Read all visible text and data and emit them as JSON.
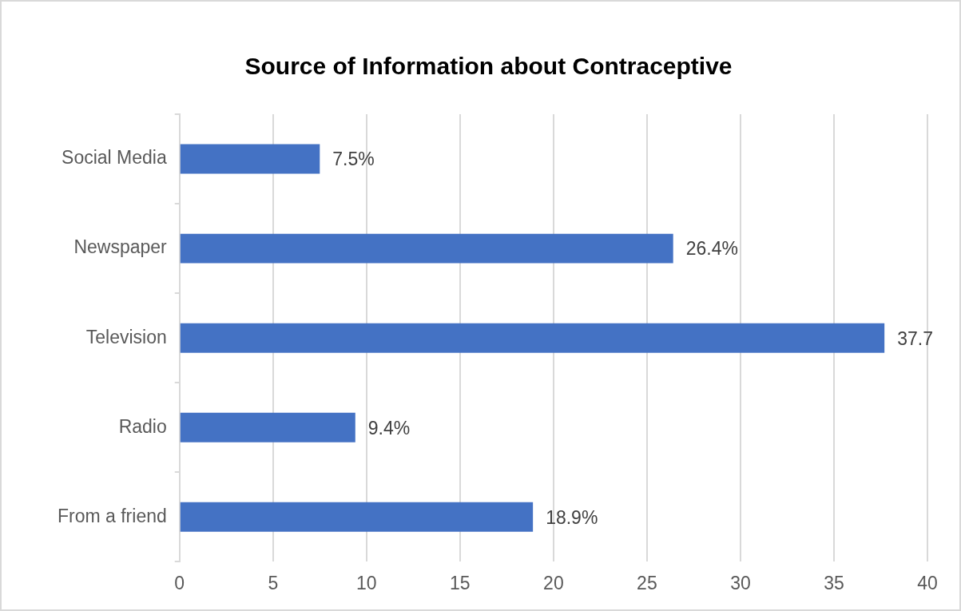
{
  "chart_data": {
    "type": "bar",
    "orientation": "horizontal",
    "title": "Source of Information about Contraceptive",
    "categories": [
      "Social Media",
      "Newspaper",
      "Television",
      "Radio",
      "From a friend"
    ],
    "values": [
      7.5,
      26.4,
      37.7,
      9.4,
      18.9
    ],
    "value_labels": [
      "7.5%",
      "26.4%",
      "37.7",
      "9.4%",
      "18.9%"
    ],
    "color": "#4472c4",
    "xlim": [
      0,
      40
    ],
    "xticks": [
      0,
      5,
      10,
      15,
      20,
      25,
      30,
      35,
      40
    ],
    "grid": "x",
    "legend": false
  }
}
